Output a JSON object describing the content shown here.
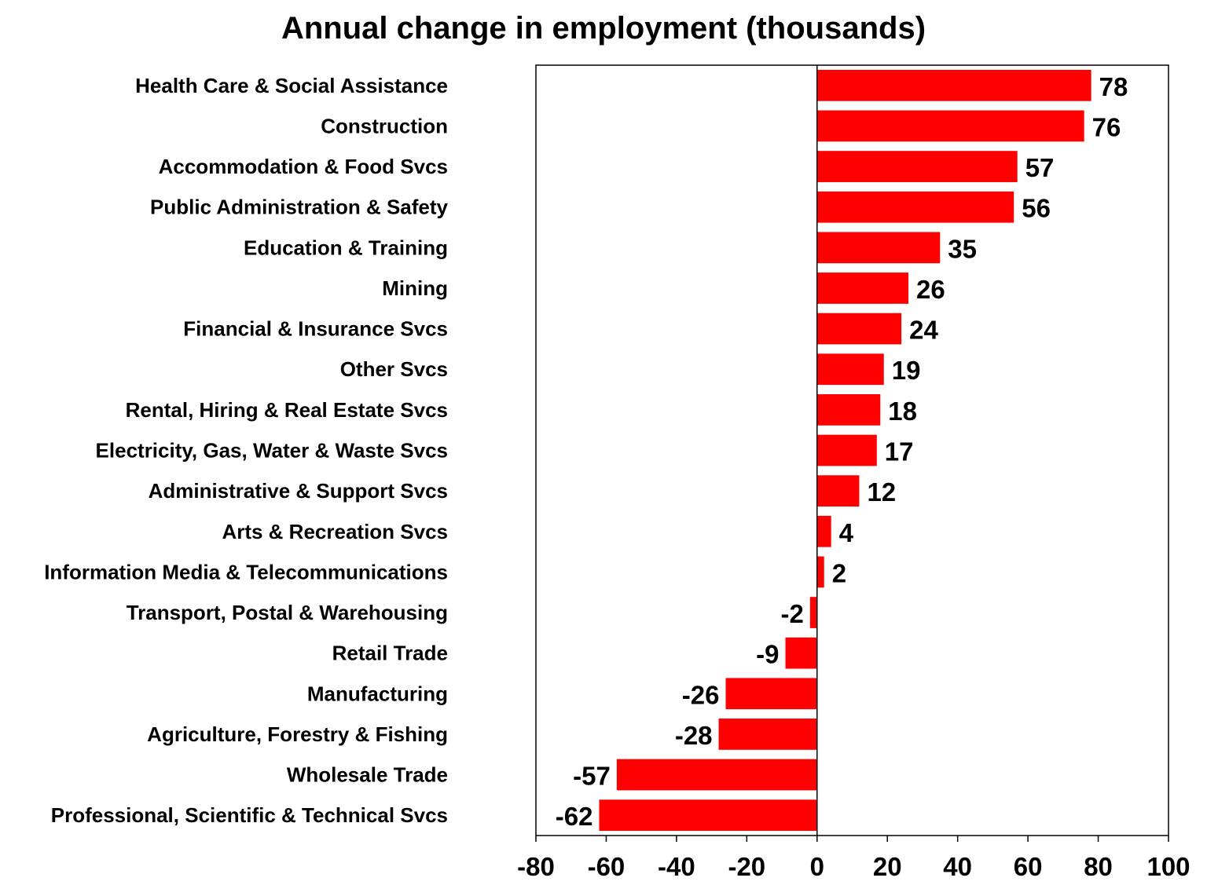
{
  "chart_data": {
    "type": "bar",
    "orientation": "horizontal",
    "title": "Annual change in employment (thousands)",
    "xlabel": "",
    "ylabel": "",
    "xlim": [
      -80,
      100
    ],
    "x_ticks": [
      -80,
      -60,
      -40,
      -20,
      0,
      20,
      40,
      60,
      80,
      100
    ],
    "grid": false,
    "legend": "none",
    "bar_color": "#FF0000",
    "categories": [
      "Health Care & Social Assistance",
      "Construction",
      "Accommodation & Food Svcs",
      "Public Administration & Safety",
      "Education & Training",
      "Mining",
      "Financial & Insurance Svcs",
      "Other Svcs",
      "Rental, Hiring & Real Estate Svcs",
      "Electricity, Gas, Water & Waste Svcs",
      "Administrative & Support Svcs",
      "Arts & Recreation Svcs",
      "Information Media & Telecommunications",
      "Transport, Postal & Warehousing",
      "Retail Trade",
      "Manufacturing",
      "Agriculture, Forestry & Fishing",
      "Wholesale Trade",
      "Professional, Scientific & Technical Svcs"
    ],
    "values": [
      78,
      76,
      57,
      56,
      35,
      26,
      24,
      19,
      18,
      17,
      12,
      4,
      2,
      -2,
      -9,
      -26,
      -28,
      -57,
      -62
    ],
    "data_labels": [
      "78",
      "76",
      "57",
      "56",
      "35",
      "26",
      "24",
      "19",
      "18",
      "17",
      "12",
      "4",
      "2",
      "-2",
      "-9",
      "-26",
      "-28",
      "-57",
      "-62"
    ]
  }
}
